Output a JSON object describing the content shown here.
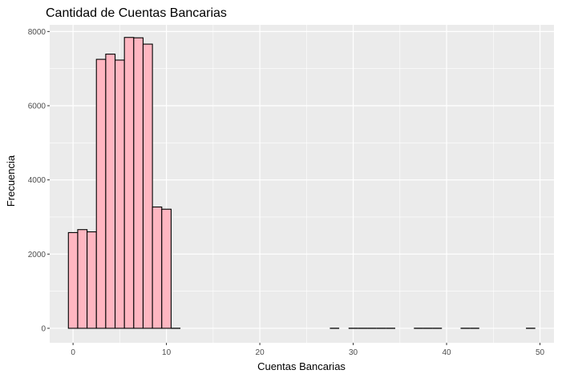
{
  "chart_data": {
    "type": "bar",
    "title": "Cantidad de Cuentas Bancarias",
    "xlabel": "Cuentas Bancarias",
    "ylabel": "Frecuencia",
    "xlim": [
      -2.5,
      51.5
    ],
    "ylim": [
      -390,
      8180
    ],
    "x_ticks": [
      0,
      10,
      20,
      30,
      40,
      50
    ],
    "y_ticks": [
      0,
      2000,
      4000,
      6000,
      8000
    ],
    "bin_width": 1,
    "bins": [
      {
        "x": 0,
        "count": 2580
      },
      {
        "x": 1,
        "count": 2660
      },
      {
        "x": 2,
        "count": 2600
      },
      {
        "x": 3,
        "count": 7250
      },
      {
        "x": 4,
        "count": 7390
      },
      {
        "x": 5,
        "count": 7230
      },
      {
        "x": 6,
        "count": 7840
      },
      {
        "x": 7,
        "count": 7830
      },
      {
        "x": 8,
        "count": 7660
      },
      {
        "x": 9,
        "count": 3270
      },
      {
        "x": 10,
        "count": 3210
      },
      {
        "x": 11,
        "count": 0
      },
      {
        "x": 28,
        "count": 0
      },
      {
        "x": 30,
        "count": 0
      },
      {
        "x": 31,
        "count": 0
      },
      {
        "x": 32,
        "count": 0
      },
      {
        "x": 33,
        "count": 0
      },
      {
        "x": 34,
        "count": 0
      },
      {
        "x": 37,
        "count": 0
      },
      {
        "x": 38,
        "count": 0
      },
      {
        "x": 39,
        "count": 0
      },
      {
        "x": 42,
        "count": 0
      },
      {
        "x": 43,
        "count": 0
      },
      {
        "x": 49,
        "count": 0
      }
    ],
    "fill_color": "#ffb6c1",
    "edge_color": "#000000",
    "panel_color": "#ebebeb",
    "grid_color": "#ffffff",
    "grid": true,
    "legend": "none"
  }
}
